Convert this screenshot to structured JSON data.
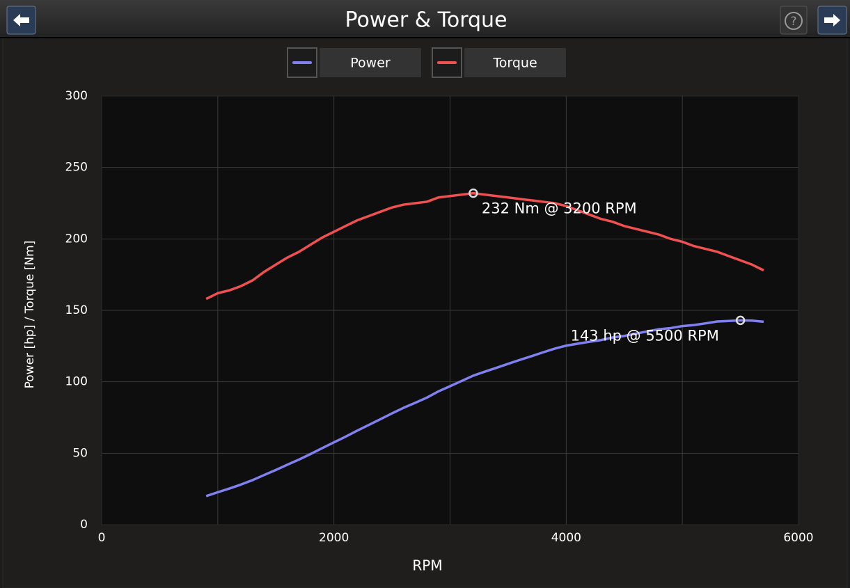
{
  "ui": {
    "help_button": "?"
  },
  "chart_data": {
    "type": "line",
    "title": "Power & Torque",
    "xlabel": "RPM",
    "ylabel": "Power [hp] / Torque [Nm]",
    "x": [
      900,
      1000,
      1100,
      1200,
      1300,
      1400,
      1500,
      1600,
      1700,
      1800,
      1900,
      2000,
      2100,
      2200,
      2300,
      2400,
      2500,
      2600,
      2700,
      2800,
      2900,
      3000,
      3100,
      3200,
      3300,
      3400,
      3500,
      3600,
      3700,
      3800,
      3900,
      4000,
      4100,
      4200,
      4300,
      4400,
      4500,
      4600,
      4700,
      4800,
      4900,
      5000,
      5100,
      5200,
      5300,
      5400,
      5500,
      5600,
      5700
    ],
    "series": [
      {
        "name": "Power",
        "color": "#8080f0",
        "values": [
          20,
          22.7,
          25.3,
          28.1,
          31.2,
          34.8,
          38.3,
          42,
          45.6,
          49.5,
          53.6,
          57.6,
          61.6,
          65.8,
          69.8,
          73.8,
          77.9,
          81.8,
          85.3,
          88.9,
          93.3,
          96.9,
          100.6,
          104.3,
          107.1,
          109.8,
          112.6,
          115.3,
          117.9,
          120.6,
          123.2,
          125.3,
          126.7,
          128,
          129.2,
          131,
          132.1,
          133.7,
          135.3,
          136.8,
          137.6,
          139,
          139.7,
          140.9,
          142.2,
          142.6,
          143,
          142.8,
          142
        ]
      },
      {
        "name": "Torque",
        "color": "#f05050",
        "values": [
          158,
          162,
          164,
          167,
          171,
          177,
          182,
          187,
          191,
          196,
          201,
          205,
          209,
          213,
          216,
          219,
          222,
          224,
          225,
          226,
          229,
          230,
          231,
          232,
          231,
          230,
          229,
          228,
          227,
          226,
          225,
          223,
          220,
          217,
          214,
          212,
          209,
          207,
          205,
          203,
          200,
          198,
          195,
          193,
          191,
          188,
          185,
          182,
          178
        ]
      }
    ],
    "annotations": [
      {
        "text": "232 Nm @ 3200 RPM",
        "x": 3200,
        "y": 232
      },
      {
        "text": "143 hp @ 5500 RPM",
        "x": 5500,
        "y": 143
      }
    ],
    "xlim": [
      0,
      6000
    ],
    "xticks": [
      0,
      2000,
      4000,
      6000
    ],
    "xgrid": [
      1000,
      2000,
      3000,
      4000,
      5000
    ],
    "ylim": [
      0,
      300
    ],
    "yticks": [
      0,
      50,
      100,
      150,
      200,
      250,
      300
    ],
    "grid": true
  }
}
